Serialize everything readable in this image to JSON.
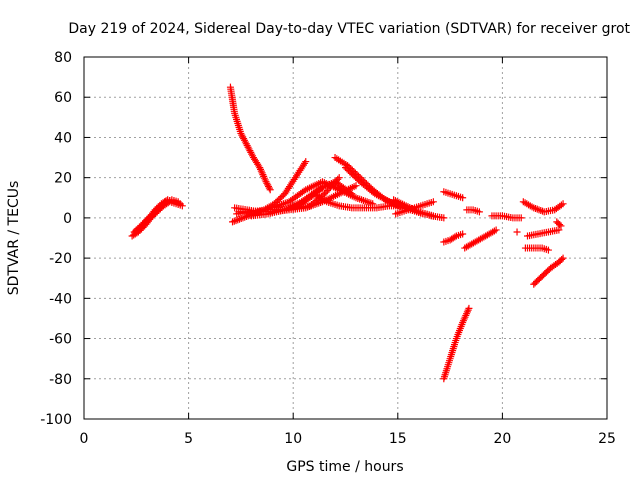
{
  "chart_data": {
    "type": "scatter",
    "title": "Day 219 of 2024, Sidereal Day-to-day VTEC variation (SDTVAR) for receiver grot",
    "xlabel": "GPS time / hours",
    "ylabel": "SDTVAR / TECUs",
    "xlim": [
      0,
      25
    ],
    "ylim": [
      -100,
      80
    ],
    "xticks": [
      0,
      5,
      10,
      15,
      20,
      25
    ],
    "yticks": [
      -100,
      -80,
      -60,
      -40,
      -20,
      0,
      20,
      40,
      60,
      80
    ],
    "grid": true,
    "marker": "plus",
    "color": "#ff0000",
    "series": [
      {
        "x": [
          2.3,
          2.6,
          2.9,
          3.2,
          3.5,
          3.8,
          4.1,
          4.4,
          4.7
        ],
        "y": [
          -9,
          -7,
          -4,
          0,
          3,
          6,
          8,
          7,
          6
        ]
      },
      {
        "x": [
          2.4,
          2.7,
          3.0,
          3.3,
          3.6,
          3.9,
          4.2,
          4.5
        ],
        "y": [
          -7,
          -5,
          -1,
          2,
          5,
          8,
          9,
          8
        ]
      },
      {
        "x": [
          2.5,
          2.8,
          3.1,
          3.4,
          3.7,
          4.0,
          4.3,
          4.6
        ],
        "y": [
          -6,
          -3,
          0,
          4,
          7,
          9,
          8,
          7
        ]
      },
      {
        "x": [
          7.0,
          7.2,
          7.5,
          7.8,
          8.1,
          8.4,
          8.7,
          8.9
        ],
        "y": [
          65,
          52,
          42,
          36,
          30,
          25,
          18,
          14
        ]
      },
      {
        "x": [
          7.1,
          7.6,
          8.1,
          8.6,
          9.1,
          9.6,
          10.1,
          10.6
        ],
        "y": [
          -2,
          0,
          2,
          4,
          7,
          12,
          20,
          28
        ]
      },
      {
        "x": [
          7.2,
          7.8,
          8.4,
          9.0,
          9.6,
          10.2,
          10.8,
          11.4
        ],
        "y": [
          5,
          4,
          3,
          3,
          4,
          6,
          10,
          15
        ]
      },
      {
        "x": [
          7.3,
          8.0,
          8.7,
          9.4,
          10.1,
          10.8,
          11.5,
          12.2
        ],
        "y": [
          2,
          3,
          4,
          4,
          5,
          6,
          12,
          20
        ]
      },
      {
        "x": [
          7.4,
          8.2,
          9.0,
          9.8,
          10.6,
          11.4,
          12.2,
          13.0
        ],
        "y": [
          3,
          3,
          3,
          4,
          5,
          8,
          12,
          16
        ]
      },
      {
        "x": [
          8.0,
          8.8,
          9.6,
          10.4,
          11.2,
          12.0,
          12.8
        ],
        "y": [
          1,
          2,
          4,
          8,
          14,
          18,
          12
        ]
      },
      {
        "x": [
          9.0,
          9.8,
          10.6,
          11.4,
          12.2,
          13.0,
          13.8
        ],
        "y": [
          5,
          8,
          14,
          18,
          14,
          10,
          7
        ]
      },
      {
        "x": [
          11.0,
          11.6,
          12.2,
          12.8,
          13.4,
          14.0,
          14.6,
          15.2
        ],
        "y": [
          12,
          8,
          6,
          5,
          5,
          5,
          6,
          6
        ]
      },
      {
        "x": [
          12.0,
          12.6,
          13.2,
          13.8,
          14.4,
          15.0,
          15.6,
          16.2
        ],
        "y": [
          30,
          26,
          20,
          14,
          9,
          6,
          4,
          2
        ]
      },
      {
        "x": [
          12.5,
          13.2,
          13.9,
          14.6,
          15.3,
          16.0,
          16.7
        ],
        "y": [
          25,
          18,
          12,
          8,
          5,
          3,
          1
        ]
      },
      {
        "x": [
          14.8,
          15.4,
          16.0,
          16.6,
          17.2
        ],
        "y": [
          9,
          6,
          3,
          1,
          0
        ]
      },
      {
        "x": [
          14.9,
          15.5,
          16.1,
          16.7
        ],
        "y": [
          2,
          4,
          6,
          8
        ]
      },
      {
        "x": [
          17.2,
          17.5,
          17.8,
          18.1
        ],
        "y": [
          13,
          12,
          11,
          10
        ]
      },
      {
        "x": [
          17.2,
          17.5,
          17.8,
          18.1
        ],
        "y": [
          -12,
          -11,
          -9,
          -8
        ]
      },
      {
        "x": [
          17.2,
          17.5,
          17.8,
          18.1,
          18.4
        ],
        "y": [
          -80,
          -70,
          -60,
          -52,
          -45
        ]
      },
      {
        "x": [
          18.3,
          18.6,
          18.9
        ],
        "y": [
          4,
          4,
          3
        ]
      },
      {
        "x": [
          18.2,
          18.7,
          19.2,
          19.7
        ],
        "y": [
          -15,
          -12,
          -9,
          -6
        ]
      },
      {
        "x": [
          19.5,
          20.0,
          20.5,
          20.9
        ],
        "y": [
          1,
          1,
          0,
          0
        ]
      },
      {
        "x": [
          20.7
        ],
        "y": [
          -7
        ]
      },
      {
        "x": [
          21.0,
          21.5,
          22.0,
          22.5,
          22.9
        ],
        "y": [
          8,
          5,
          3,
          4,
          7
        ]
      },
      {
        "x": [
          21.2,
          21.7,
          22.2,
          22.7
        ],
        "y": [
          -9,
          -8,
          -7,
          -6
        ]
      },
      {
        "x": [
          21.1,
          21.5,
          21.9,
          22.2
        ],
        "y": [
          -15,
          -15,
          -15,
          -16
        ]
      },
      {
        "x": [
          21.5,
          21.9,
          22.3,
          22.7,
          22.9
        ],
        "y": [
          -33,
          -29,
          -25,
          -22,
          -20
        ]
      },
      {
        "x": [
          22.6,
          22.8
        ],
        "y": [
          -2,
          -4
        ]
      }
    ]
  }
}
